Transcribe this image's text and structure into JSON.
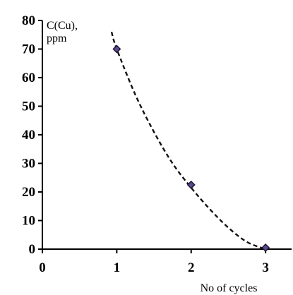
{
  "chart_data": {
    "type": "scatter",
    "ylabel_lines": [
      "C(Cu),",
      "ppm"
    ],
    "xlabel": "No of cycles",
    "xlim": [
      0,
      3.35
    ],
    "ylim": [
      0,
      80
    ],
    "x_ticks": [
      "0",
      "1",
      "2",
      "3"
    ],
    "y_ticks": [
      "0",
      "10",
      "20",
      "30",
      "40",
      "50",
      "60",
      "70",
      "80"
    ],
    "series": [
      {
        "points": [
          {
            "x": 1,
            "y": 70
          },
          {
            "x": 2,
            "y": 22.5
          },
          {
            "x": 3,
            "y": 0.5
          }
        ]
      }
    ],
    "trendline": {
      "style": "dashed",
      "x": [
        0.93,
        1.0,
        1.25,
        1.5,
        1.75,
        2.0,
        2.25,
        2.5,
        2.75,
        3.0
      ],
      "y": [
        76,
        70,
        54,
        41,
        30,
        21.5,
        14,
        7.5,
        2.5,
        0
      ]
    },
    "grid": false,
    "colors": {
      "marker": "#5b4a8a",
      "trendline": "#111111"
    }
  }
}
